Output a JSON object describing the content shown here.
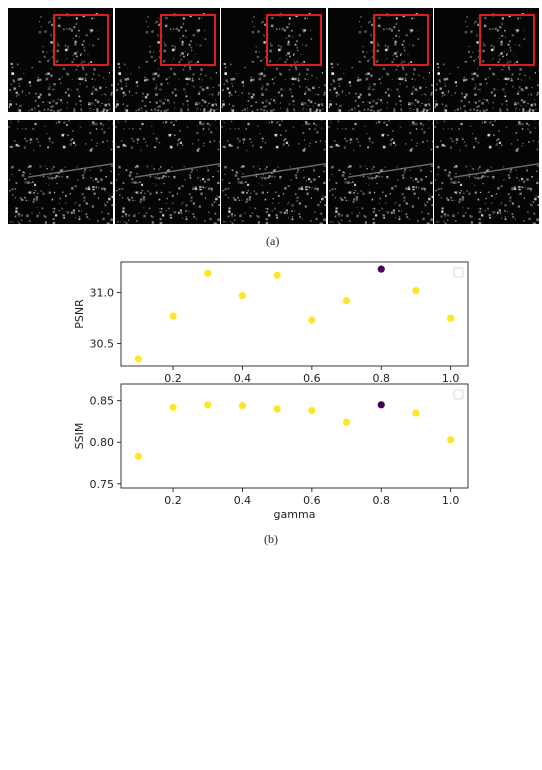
{
  "figure": {
    "caption_a": "(a)",
    "caption_b": "(b)",
    "highlight_color": "#e01b1b",
    "image_rows": [
      {
        "tiles": 5,
        "highlight_box": true
      },
      {
        "tiles": 5,
        "highlight_box": false
      }
    ]
  },
  "chart_data": [
    {
      "type": "scatter",
      "x": [
        0.1,
        0.2,
        0.3,
        0.4,
        0.5,
        0.6,
        0.7,
        0.8,
        0.9,
        1.0
      ],
      "series": [
        {
          "values": [
            30.35,
            30.77,
            31.19,
            30.97,
            31.17,
            30.73,
            30.92,
            31.23,
            31.02,
            30.75
          ]
        }
      ],
      "point_colors": [
        "#fde725",
        "#fde725",
        "#fde725",
        "#fde725",
        "#fde725",
        "#fde725",
        "#fde725",
        "#440154",
        "#fde725",
        "#fde725"
      ],
      "xlabel": "",
      "ylabel": "PSNR",
      "xlim": [
        0.05,
        1.05
      ],
      "ylim": [
        30.28,
        31.3
      ],
      "yticks": [
        30.5,
        31.0
      ],
      "xticks": [
        0.2,
        0.4,
        0.6,
        0.8,
        1.0
      ],
      "ytick_labels": [
        "30.5",
        "31.0"
      ],
      "xtick_labels": [
        "0.2",
        "0.4",
        "0.6",
        "0.8",
        "1.0"
      ],
      "legend": "top-right",
      "grid": false
    },
    {
      "type": "scatter",
      "x": [
        0.1,
        0.2,
        0.3,
        0.4,
        0.5,
        0.6,
        0.7,
        0.8,
        0.9,
        1.0
      ],
      "series": [
        {
          "values": [
            0.783,
            0.842,
            0.845,
            0.844,
            0.84,
            0.838,
            0.824,
            0.845,
            0.835,
            0.803
          ]
        }
      ],
      "point_colors": [
        "#fde725",
        "#fde725",
        "#fde725",
        "#fde725",
        "#fde725",
        "#fde725",
        "#fde725",
        "#440154",
        "#fde725",
        "#fde725"
      ],
      "xlabel": "gamma",
      "ylabel": "SSIM",
      "xlim": [
        0.05,
        1.05
      ],
      "ylim": [
        0.745,
        0.87
      ],
      "yticks": [
        0.75,
        0.8,
        0.85
      ],
      "xticks": [
        0.2,
        0.4,
        0.6,
        0.8,
        1.0
      ],
      "ytick_labels": [
        "0.75",
        "0.80",
        "0.85"
      ],
      "xtick_labels": [
        "0.2",
        "0.4",
        "0.6",
        "0.8",
        "1.0"
      ],
      "legend": "top-right",
      "grid": false
    }
  ]
}
